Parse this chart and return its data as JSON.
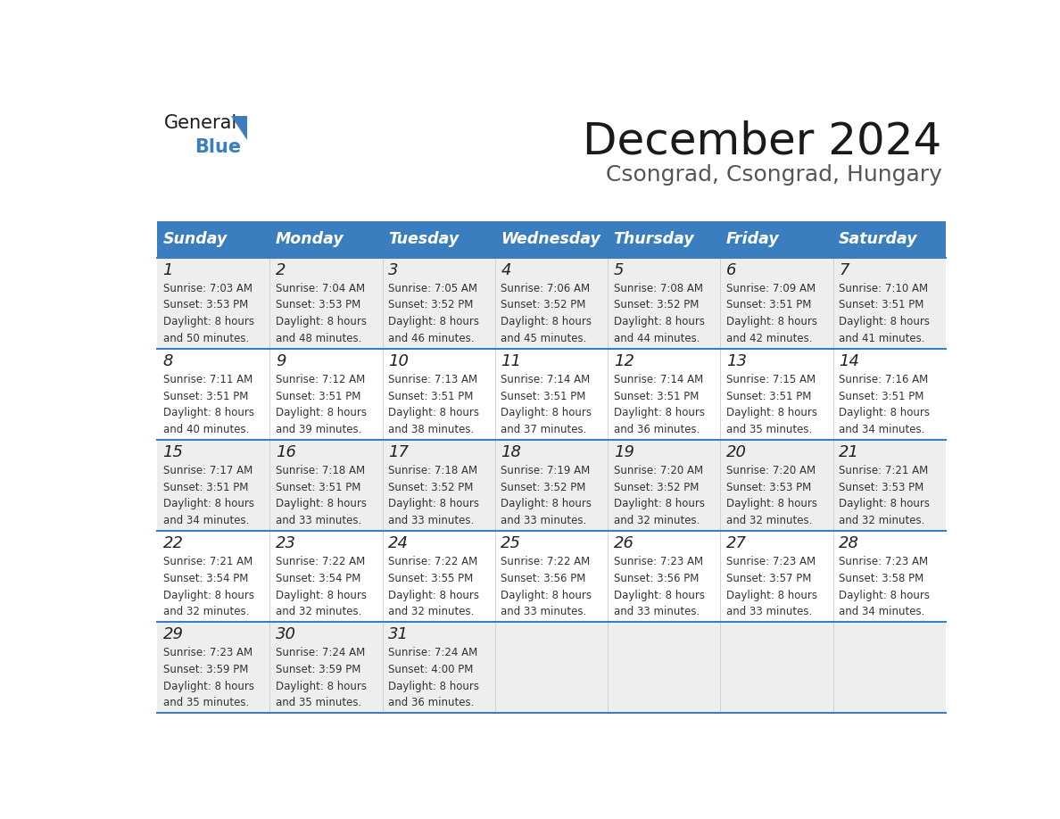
{
  "title": "December 2024",
  "subtitle": "Csongrad, Csongrad, Hungary",
  "header_bg": "#3a7ebf",
  "header_text_color": "#ffffff",
  "weekdays": [
    "Sunday",
    "Monday",
    "Tuesday",
    "Wednesday",
    "Thursday",
    "Friday",
    "Saturday"
  ],
  "row_bg_odd": "#eeeeee",
  "row_bg_even": "#ffffff",
  "cell_border_color": "#3a7ebf",
  "text_color": "#333333",
  "days": [
    {
      "day": 1,
      "col": 0,
      "row": 0,
      "sunrise": "7:03 AM",
      "sunset": "3:53 PM",
      "daylight": "8 hours and 50 minutes"
    },
    {
      "day": 2,
      "col": 1,
      "row": 0,
      "sunrise": "7:04 AM",
      "sunset": "3:53 PM",
      "daylight": "8 hours and 48 minutes"
    },
    {
      "day": 3,
      "col": 2,
      "row": 0,
      "sunrise": "7:05 AM",
      "sunset": "3:52 PM",
      "daylight": "8 hours and 46 minutes"
    },
    {
      "day": 4,
      "col": 3,
      "row": 0,
      "sunrise": "7:06 AM",
      "sunset": "3:52 PM",
      "daylight": "8 hours and 45 minutes"
    },
    {
      "day": 5,
      "col": 4,
      "row": 0,
      "sunrise": "7:08 AM",
      "sunset": "3:52 PM",
      "daylight": "8 hours and 44 minutes"
    },
    {
      "day": 6,
      "col": 5,
      "row": 0,
      "sunrise": "7:09 AM",
      "sunset": "3:51 PM",
      "daylight": "8 hours and 42 minutes"
    },
    {
      "day": 7,
      "col": 6,
      "row": 0,
      "sunrise": "7:10 AM",
      "sunset": "3:51 PM",
      "daylight": "8 hours and 41 minutes"
    },
    {
      "day": 8,
      "col": 0,
      "row": 1,
      "sunrise": "7:11 AM",
      "sunset": "3:51 PM",
      "daylight": "8 hours and 40 minutes"
    },
    {
      "day": 9,
      "col": 1,
      "row": 1,
      "sunrise": "7:12 AM",
      "sunset": "3:51 PM",
      "daylight": "8 hours and 39 minutes"
    },
    {
      "day": 10,
      "col": 2,
      "row": 1,
      "sunrise": "7:13 AM",
      "sunset": "3:51 PM",
      "daylight": "8 hours and 38 minutes"
    },
    {
      "day": 11,
      "col": 3,
      "row": 1,
      "sunrise": "7:14 AM",
      "sunset": "3:51 PM",
      "daylight": "8 hours and 37 minutes"
    },
    {
      "day": 12,
      "col": 4,
      "row": 1,
      "sunrise": "7:14 AM",
      "sunset": "3:51 PM",
      "daylight": "8 hours and 36 minutes"
    },
    {
      "day": 13,
      "col": 5,
      "row": 1,
      "sunrise": "7:15 AM",
      "sunset": "3:51 PM",
      "daylight": "8 hours and 35 minutes"
    },
    {
      "day": 14,
      "col": 6,
      "row": 1,
      "sunrise": "7:16 AM",
      "sunset": "3:51 PM",
      "daylight": "8 hours and 34 minutes"
    },
    {
      "day": 15,
      "col": 0,
      "row": 2,
      "sunrise": "7:17 AM",
      "sunset": "3:51 PM",
      "daylight": "8 hours and 34 minutes"
    },
    {
      "day": 16,
      "col": 1,
      "row": 2,
      "sunrise": "7:18 AM",
      "sunset": "3:51 PM",
      "daylight": "8 hours and 33 minutes"
    },
    {
      "day": 17,
      "col": 2,
      "row": 2,
      "sunrise": "7:18 AM",
      "sunset": "3:52 PM",
      "daylight": "8 hours and 33 minutes"
    },
    {
      "day": 18,
      "col": 3,
      "row": 2,
      "sunrise": "7:19 AM",
      "sunset": "3:52 PM",
      "daylight": "8 hours and 33 minutes"
    },
    {
      "day": 19,
      "col": 4,
      "row": 2,
      "sunrise": "7:20 AM",
      "sunset": "3:52 PM",
      "daylight": "8 hours and 32 minutes"
    },
    {
      "day": 20,
      "col": 5,
      "row": 2,
      "sunrise": "7:20 AM",
      "sunset": "3:53 PM",
      "daylight": "8 hours and 32 minutes"
    },
    {
      "day": 21,
      "col": 6,
      "row": 2,
      "sunrise": "7:21 AM",
      "sunset": "3:53 PM",
      "daylight": "8 hours and 32 minutes"
    },
    {
      "day": 22,
      "col": 0,
      "row": 3,
      "sunrise": "7:21 AM",
      "sunset": "3:54 PM",
      "daylight": "8 hours and 32 minutes"
    },
    {
      "day": 23,
      "col": 1,
      "row": 3,
      "sunrise": "7:22 AM",
      "sunset": "3:54 PM",
      "daylight": "8 hours and 32 minutes"
    },
    {
      "day": 24,
      "col": 2,
      "row": 3,
      "sunrise": "7:22 AM",
      "sunset": "3:55 PM",
      "daylight": "8 hours and 32 minutes"
    },
    {
      "day": 25,
      "col": 3,
      "row": 3,
      "sunrise": "7:22 AM",
      "sunset": "3:56 PM",
      "daylight": "8 hours and 33 minutes"
    },
    {
      "day": 26,
      "col": 4,
      "row": 3,
      "sunrise": "7:23 AM",
      "sunset": "3:56 PM",
      "daylight": "8 hours and 33 minutes"
    },
    {
      "day": 27,
      "col": 5,
      "row": 3,
      "sunrise": "7:23 AM",
      "sunset": "3:57 PM",
      "daylight": "8 hours and 33 minutes"
    },
    {
      "day": 28,
      "col": 6,
      "row": 3,
      "sunrise": "7:23 AM",
      "sunset": "3:58 PM",
      "daylight": "8 hours and 34 minutes"
    },
    {
      "day": 29,
      "col": 0,
      "row": 4,
      "sunrise": "7:23 AM",
      "sunset": "3:59 PM",
      "daylight": "8 hours and 35 minutes"
    },
    {
      "day": 30,
      "col": 1,
      "row": 4,
      "sunrise": "7:24 AM",
      "sunset": "3:59 PM",
      "daylight": "8 hours and 35 minutes"
    },
    {
      "day": 31,
      "col": 2,
      "row": 4,
      "sunrise": "7:24 AM",
      "sunset": "4:00 PM",
      "daylight": "8 hours and 36 minutes"
    }
  ],
  "num_rows": 5,
  "logo_text_general": "General",
  "logo_text_blue": "Blue",
  "logo_color_general": "#1a1a1a",
  "logo_color_blue": "#3a7ebf",
  "logo_triangle_color": "#3a7ebf"
}
